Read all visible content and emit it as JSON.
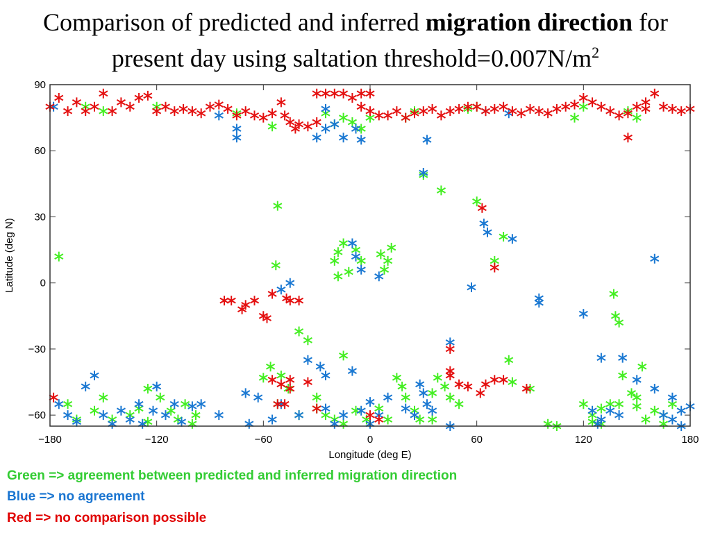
{
  "title": {
    "line1_pre": "Comparison of predicted and inferred ",
    "line1_bold": "migration direction",
    "line1_post": " for",
    "line2": "present day using saltation threshold=0.007N/m",
    "line2_sup": "2"
  },
  "legend": {
    "green": "Green => agreement between predicted and inferred migration direction",
    "blue": "Blue => no agreement",
    "red": "Red => no comparison possible"
  },
  "colors": {
    "green": "#44ee22",
    "blue": "#1a78d2",
    "red": "#e41010"
  },
  "chart_data": {
    "type": "scatter",
    "title": "",
    "xlabel": "Longitude (deg E)",
    "ylabel": "Latitude (deg N)",
    "xlim": [
      -180,
      180
    ],
    "ylim": [
      -65,
      90
    ],
    "xticks": [
      -180,
      -120,
      -60,
      0,
      60,
      120,
      180
    ],
    "yticks": [
      -60,
      -30,
      0,
      30,
      60,
      90
    ],
    "grid": false,
    "series": [
      {
        "color": "green",
        "points": [
          [
            -175,
            12
          ],
          [
            -52,
            35
          ],
          [
            -53,
            8
          ],
          [
            -40,
            -22
          ],
          [
            -35,
            -26
          ],
          [
            -15,
            -33
          ],
          [
            -18,
            14
          ],
          [
            -15,
            18
          ],
          [
            -20,
            10
          ],
          [
            -12,
            5
          ],
          [
            -8,
            15
          ],
          [
            -5,
            10
          ],
          [
            -18,
            3
          ],
          [
            8,
            6
          ],
          [
            10,
            10
          ],
          [
            12,
            16
          ],
          [
            6,
            13
          ],
          [
            30,
            49
          ],
          [
            40,
            42
          ],
          [
            60,
            37
          ],
          [
            70,
            10
          ],
          [
            75,
            21
          ],
          [
            78,
            -35
          ],
          [
            80,
            -45
          ],
          [
            90,
            -48
          ],
          [
            137,
            -5
          ],
          [
            138,
            -15
          ],
          [
            140,
            -18
          ],
          [
            142,
            -42
          ],
          [
            147,
            -50
          ],
          [
            150,
            -52
          ],
          [
            153,
            -38
          ],
          [
            115,
            75
          ],
          [
            120,
            80
          ],
          [
            145,
            78
          ],
          [
            150,
            75
          ],
          [
            60,
            80
          ],
          [
            55,
            79
          ],
          [
            25,
            78
          ],
          [
            20,
            75
          ],
          [
            -15,
            75
          ],
          [
            -10,
            73
          ],
          [
            -5,
            70
          ],
          [
            0,
            75
          ],
          [
            -20,
            72
          ],
          [
            -25,
            77
          ],
          [
            -55,
            71
          ],
          [
            -75,
            77
          ],
          [
            -150,
            78
          ],
          [
            -160,
            80
          ],
          [
            -120,
            80
          ],
          [
            -170,
            -55
          ],
          [
            -165,
            -62
          ],
          [
            -155,
            -58
          ],
          [
            -150,
            -52
          ],
          [
            -145,
            -62
          ],
          [
            -135,
            -60
          ],
          [
            -130,
            -57
          ],
          [
            -125,
            -63
          ],
          [
            -118,
            -52
          ],
          [
            -112,
            -58
          ],
          [
            -108,
            -62
          ],
          [
            -104,
            -55
          ],
          [
            -98,
            -60
          ],
          [
            -60,
            -43
          ],
          [
            -56,
            -38
          ],
          [
            -50,
            -42
          ],
          [
            -46,
            -48
          ],
          [
            -52,
            -55
          ],
          [
            -30,
            -57
          ],
          [
            -25,
            -60
          ],
          [
            -20,
            -62
          ],
          [
            -15,
            -64
          ],
          [
            -8,
            -58
          ],
          [
            -2,
            -62
          ],
          [
            5,
            -57
          ],
          [
            10,
            -62
          ],
          [
            15,
            -43
          ],
          [
            18,
            -47
          ],
          [
            20,
            -52
          ],
          [
            25,
            -58
          ],
          [
            28,
            -62
          ],
          [
            35,
            -50
          ],
          [
            38,
            -43
          ],
          [
            42,
            -47
          ],
          [
            45,
            -52
          ],
          [
            120,
            -55
          ],
          [
            125,
            -60
          ],
          [
            130,
            -57
          ],
          [
            135,
            -55
          ],
          [
            140,
            -55
          ],
          [
            125,
            -63
          ],
          [
            130,
            -64
          ],
          [
            150,
            -56
          ],
          [
            155,
            -62
          ],
          [
            160,
            -58
          ],
          [
            165,
            -60
          ],
          [
            170,
            -55
          ],
          [
            165,
            -64
          ],
          [
            105,
            -65
          ],
          [
            100,
            -64
          ],
          [
            -30,
            -52
          ],
          [
            35,
            -62
          ],
          [
            -40,
            -60
          ],
          [
            50,
            -55
          ],
          [
            -125,
            -48
          ],
          [
            -100,
            -64
          ]
        ]
      },
      {
        "color": "blue",
        "points": [
          [
            -178,
            80
          ],
          [
            -175,
            -55
          ],
          [
            -170,
            -60
          ],
          [
            -165,
            -63
          ],
          [
            -160,
            -47
          ],
          [
            -155,
            -42
          ],
          [
            -150,
            -60
          ],
          [
            -145,
            -64
          ],
          [
            -140,
            -58
          ],
          [
            -135,
            -62
          ],
          [
            -130,
            -55
          ],
          [
            -128,
            -64
          ],
          [
            -122,
            -58
          ],
          [
            -120,
            -47
          ],
          [
            -115,
            -60
          ],
          [
            -110,
            -55
          ],
          [
            -106,
            -63
          ],
          [
            -100,
            -56
          ],
          [
            -95,
            -55
          ],
          [
            -85,
            76
          ],
          [
            -75,
            70
          ],
          [
            -75,
            66
          ],
          [
            -68,
            -64
          ],
          [
            -70,
            -50
          ],
          [
            -63,
            -52
          ],
          [
            -55,
            -62
          ],
          [
            -50,
            -3
          ],
          [
            -45,
            0
          ],
          [
            -50,
            -55
          ],
          [
            -40,
            -60
          ],
          [
            -35,
            -35
          ],
          [
            -28,
            -38
          ],
          [
            -25,
            -42
          ],
          [
            -25,
            -57
          ],
          [
            -20,
            -64
          ],
          [
            -15,
            -60
          ],
          [
            -10,
            18
          ],
          [
            -8,
            12
          ],
          [
            -5,
            6
          ],
          [
            -10,
            -40
          ],
          [
            -5,
            -58
          ],
          [
            0,
            -54
          ],
          [
            5,
            -60
          ],
          [
            5,
            3
          ],
          [
            10,
            -52
          ],
          [
            -25,
            79
          ],
          [
            -30,
            66
          ],
          [
            -25,
            70
          ],
          [
            -20,
            72
          ],
          [
            -15,
            66
          ],
          [
            -8,
            70
          ],
          [
            -5,
            65
          ],
          [
            30,
            50
          ],
          [
            32,
            65
          ],
          [
            28,
            -46
          ],
          [
            30,
            -50
          ],
          [
            32,
            -55
          ],
          [
            35,
            -58
          ],
          [
            25,
            -60
          ],
          [
            20,
            -57
          ],
          [
            45,
            -65
          ],
          [
            45,
            -27
          ],
          [
            57,
            -2
          ],
          [
            64,
            27
          ],
          [
            66,
            23
          ],
          [
            80,
            20
          ],
          [
            95,
            -7
          ],
          [
            95,
            -9
          ],
          [
            120,
            -14
          ],
          [
            125,
            -58
          ],
          [
            130,
            -62
          ],
          [
            135,
            -58
          ],
          [
            140,
            -60
          ],
          [
            142,
            -34
          ],
          [
            150,
            -44
          ],
          [
            160,
            -48
          ],
          [
            165,
            -60
          ],
          [
            170,
            -62
          ],
          [
            175,
            -58
          ],
          [
            180,
            -56
          ],
          [
            160,
            11
          ],
          [
            170,
            -52
          ],
          [
            175,
            -65
          ],
          [
            130,
            -34
          ],
          [
            128,
            -64
          ],
          [
            78,
            77
          ],
          [
            65,
            78
          ],
          [
            -85,
            -60
          ],
          [
            0,
            -64
          ]
        ]
      },
      {
        "color": "red",
        "points": [
          [
            -180,
            80
          ],
          [
            -175,
            84
          ],
          [
            -170,
            78
          ],
          [
            -165,
            82
          ],
          [
            -160,
            78
          ],
          [
            -155,
            80
          ],
          [
            -150,
            86
          ],
          [
            -145,
            78
          ],
          [
            -140,
            82
          ],
          [
            -135,
            80
          ],
          [
            -130,
            84
          ],
          [
            -125,
            85
          ],
          [
            -120,
            78
          ],
          [
            -115,
            80
          ],
          [
            -110,
            78
          ],
          [
            -105,
            79
          ],
          [
            -100,
            78
          ],
          [
            -95,
            77
          ],
          [
            -90,
            80
          ],
          [
            -85,
            81
          ],
          [
            -80,
            79
          ],
          [
            -75,
            76
          ],
          [
            -70,
            78
          ],
          [
            -65,
            76
          ],
          [
            -60,
            75
          ],
          [
            -55,
            77
          ],
          [
            -50,
            82
          ],
          [
            -48,
            76
          ],
          [
            -45,
            73
          ],
          [
            -42,
            70
          ],
          [
            -40,
            72
          ],
          [
            -35,
            71
          ],
          [
            -30,
            73
          ],
          [
            -30,
            86
          ],
          [
            -25,
            86
          ],
          [
            -20,
            86
          ],
          [
            -15,
            86
          ],
          [
            -10,
            84
          ],
          [
            -5,
            86
          ],
          [
            0,
            86
          ],
          [
            -5,
            80
          ],
          [
            0,
            78
          ],
          [
            5,
            76
          ],
          [
            10,
            76
          ],
          [
            15,
            78
          ],
          [
            20,
            75
          ],
          [
            25,
            77
          ],
          [
            30,
            78
          ],
          [
            35,
            79
          ],
          [
            40,
            76
          ],
          [
            45,
            78
          ],
          [
            50,
            79
          ],
          [
            55,
            80
          ],
          [
            60,
            80
          ],
          [
            65,
            78
          ],
          [
            70,
            79
          ],
          [
            75,
            80
          ],
          [
            80,
            78
          ],
          [
            85,
            77
          ],
          [
            90,
            79
          ],
          [
            95,
            78
          ],
          [
            100,
            77
          ],
          [
            105,
            79
          ],
          [
            110,
            80
          ],
          [
            115,
            81
          ],
          [
            120,
            84
          ],
          [
            125,
            82
          ],
          [
            130,
            80
          ],
          [
            135,
            78
          ],
          [
            140,
            76
          ],
          [
            145,
            77
          ],
          [
            150,
            80
          ],
          [
            155,
            82
          ],
          [
            160,
            86
          ],
          [
            165,
            80
          ],
          [
            170,
            79
          ],
          [
            175,
            78
          ],
          [
            180,
            79
          ],
          [
            145,
            66
          ],
          [
            155,
            79
          ],
          [
            -178,
            -52
          ],
          [
            -82,
            -8
          ],
          [
            -78,
            -8
          ],
          [
            -72,
            -12
          ],
          [
            -70,
            -10
          ],
          [
            -65,
            -8
          ],
          [
            -60,
            -15
          ],
          [
            -58,
            -16
          ],
          [
            -55,
            -5
          ],
          [
            -47,
            -7
          ],
          [
            -45,
            -8
          ],
          [
            -40,
            -8
          ],
          [
            -55,
            -44
          ],
          [
            -50,
            -46
          ],
          [
            -45,
            -44
          ],
          [
            -52,
            -55
          ],
          [
            -48,
            -55
          ],
          [
            -35,
            -45
          ],
          [
            -30,
            -57
          ],
          [
            0,
            -60
          ],
          [
            5,
            -62
          ],
          [
            45,
            -40
          ],
          [
            45,
            -42
          ],
          [
            45,
            -30
          ],
          [
            55,
            -47
          ],
          [
            62,
            -50
          ],
          [
            65,
            -46
          ],
          [
            70,
            -44
          ],
          [
            75,
            -44
          ],
          [
            88,
            -48
          ],
          [
            63,
            34
          ],
          [
            70,
            7
          ],
          [
            -45,
            -48
          ],
          [
            50,
            -46
          ]
        ]
      }
    ]
  }
}
